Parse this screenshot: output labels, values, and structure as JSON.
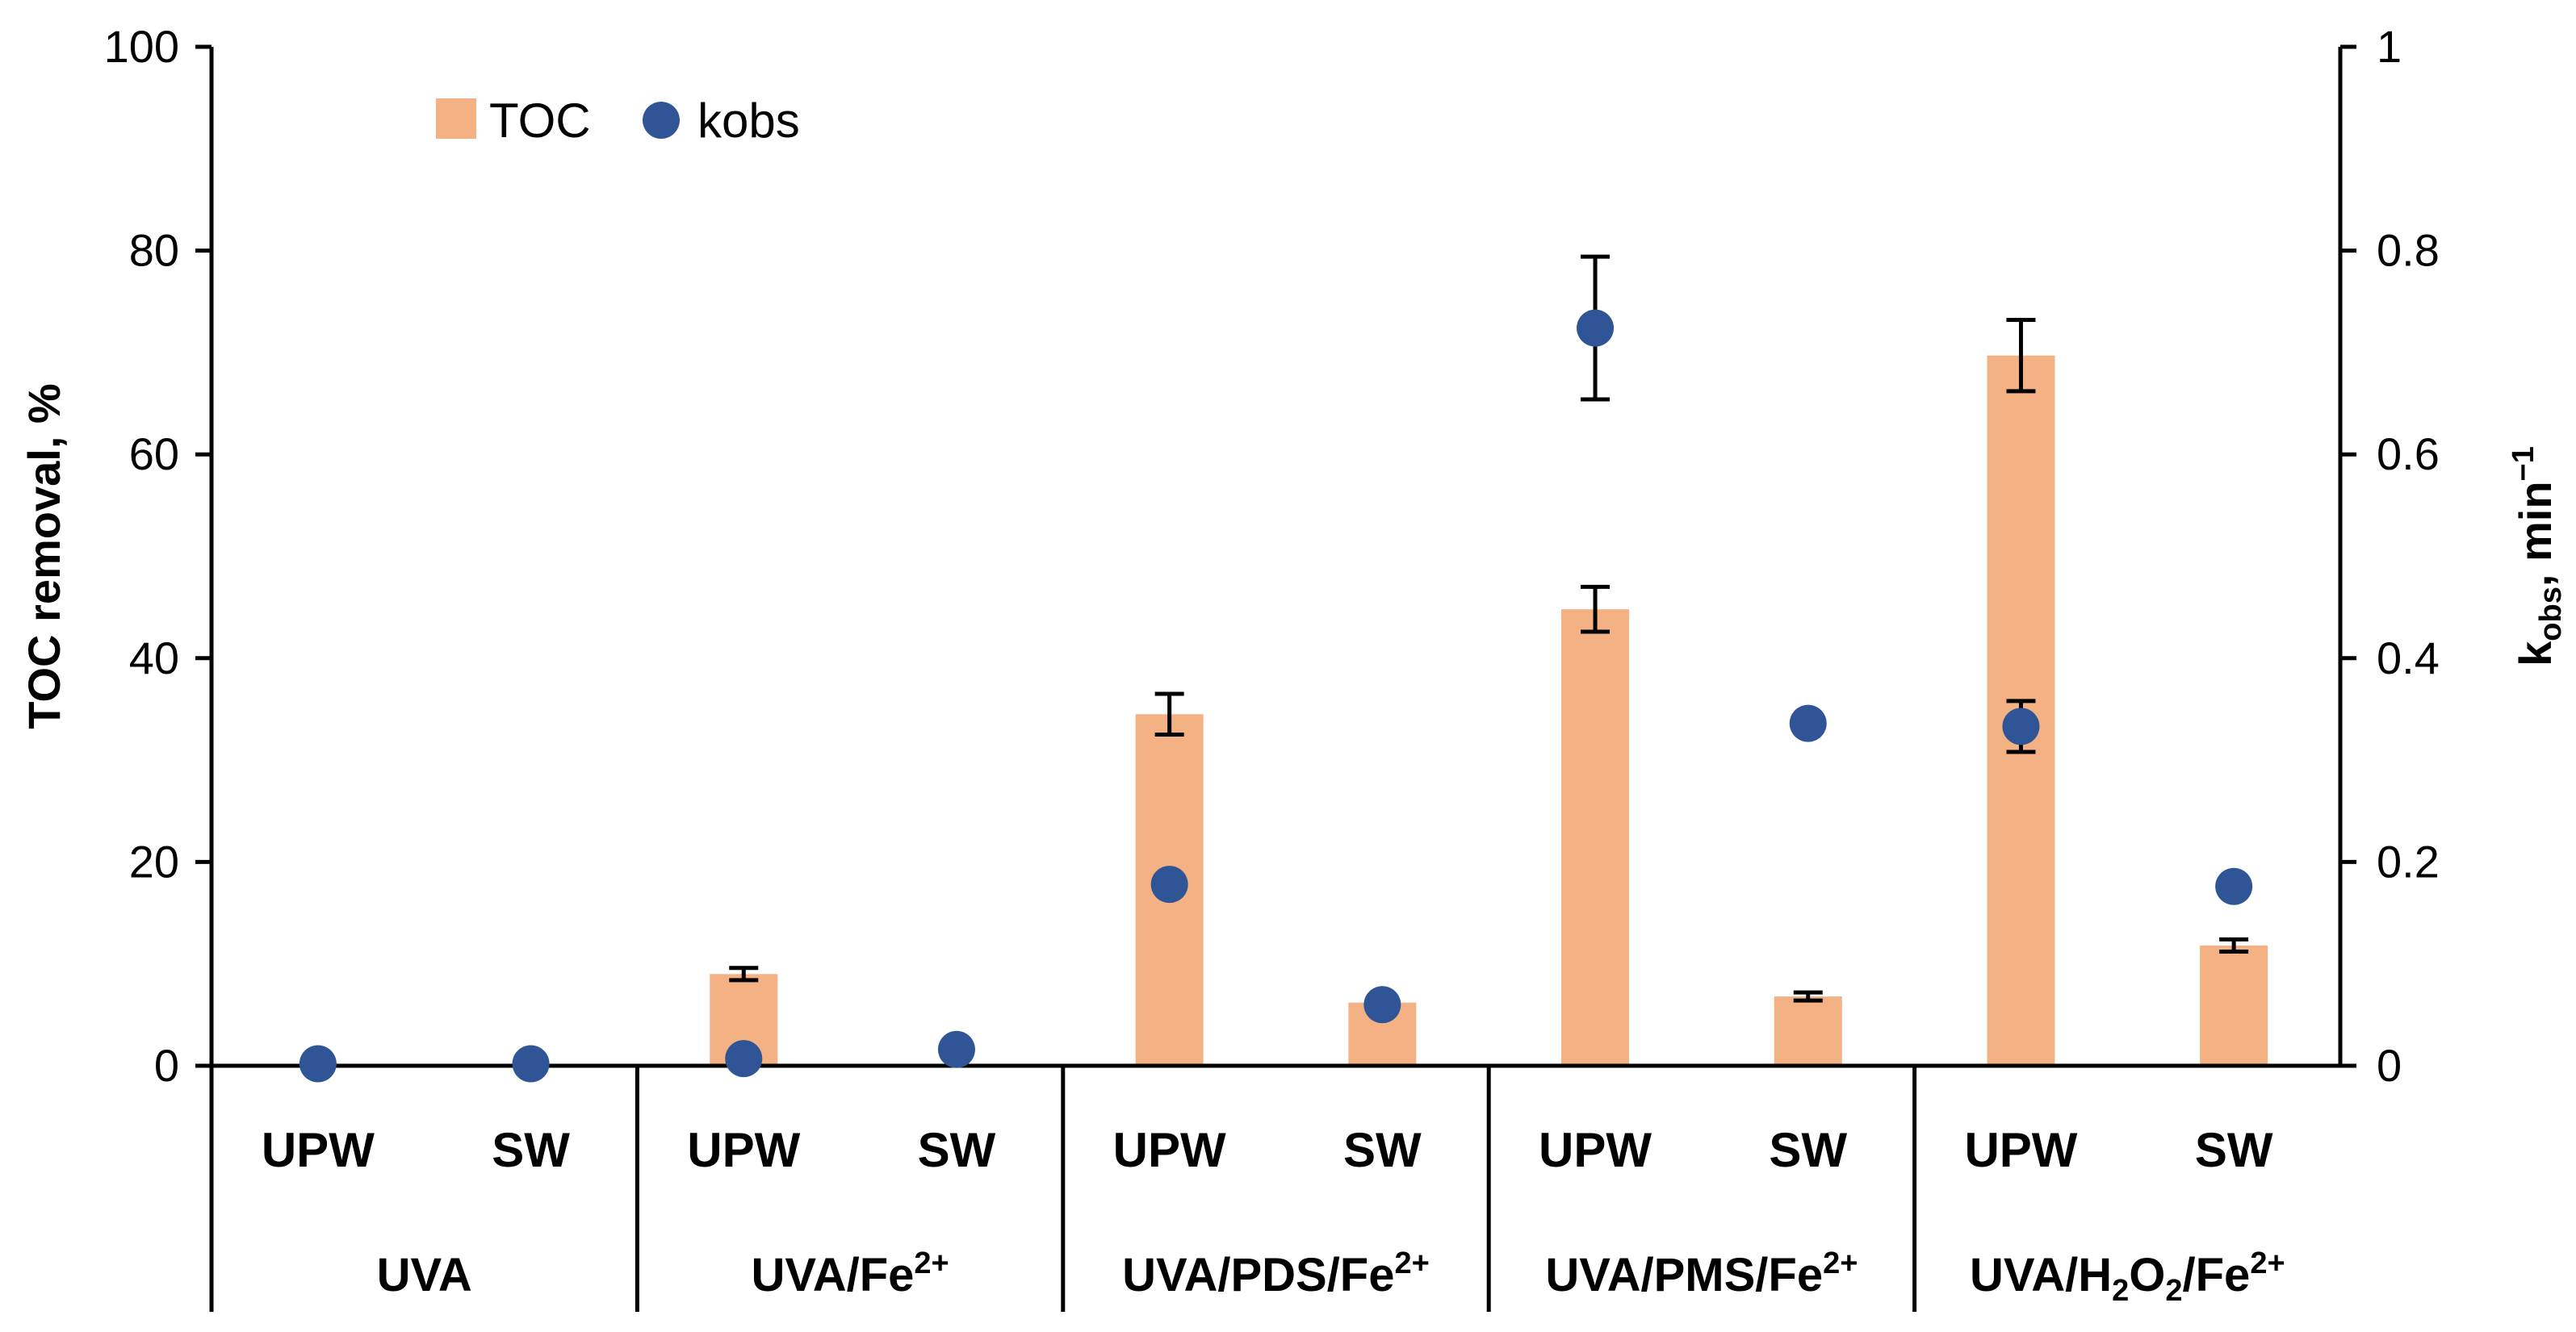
{
  "chart_data": {
    "type": "bar",
    "left_axis": {
      "label": "TOC removal, %",
      "ylim": [
        0,
        100
      ],
      "ticks": [
        "0",
        "20",
        "40",
        "60",
        "80",
        "100"
      ]
    },
    "right_axis": {
      "label_main": "k",
      "label_sub": "obs",
      "label_unit": ", min",
      "label_sup": "−1",
      "ylim": [
        0,
        1
      ],
      "ticks": [
        "0",
        "0.2",
        "0.4",
        "0.6",
        "0.8",
        "1"
      ]
    },
    "groups": [
      {
        "label": "UVA",
        "base": "UVA",
        "sup": "",
        "samples": [
          "UPW",
          "SW"
        ]
      },
      {
        "label": "UVA/Fe2+",
        "base": "UVA/Fe",
        "sup": "2+",
        "samples": [
          "UPW",
          "SW"
        ]
      },
      {
        "label": "UVA/PDS/Fe2+",
        "base": "UVA/PDS/Fe",
        "sup": "2+",
        "samples": [
          "UPW",
          "SW"
        ]
      },
      {
        "label": "UVA/PMS/Fe2+",
        "base": "UVA/PMS/Fe",
        "sup": "2+",
        "samples": [
          "UPW",
          "SW"
        ]
      },
      {
        "label": "UVA/H2O2/Fe2+",
        "parts": [
          {
            "t": "UVA/H",
            "s": ""
          },
          {
            "t": "2",
            "s": "sub"
          },
          {
            "t": "O",
            "s": ""
          },
          {
            "t": "2",
            "s": "sub"
          },
          {
            "t": "/Fe",
            "s": ""
          },
          {
            "t": "2+",
            "s": "sup"
          }
        ],
        "samples": [
          "UPW",
          "SW"
        ]
      }
    ],
    "series": [
      {
        "name": "TOC",
        "type": "bar",
        "axis": "left",
        "color": "#F4B183",
        "values": [
          0,
          0,
          9,
          0,
          34.5,
          6.2,
          44.8,
          6.8,
          69.7,
          11.8
        ],
        "errors": [
          null,
          null,
          0.6,
          null,
          2.0,
          null,
          2.2,
          0.4,
          3.5,
          0.6
        ]
      },
      {
        "name": "kobs",
        "type": "scatter",
        "axis": "right",
        "color": "#2F5597",
        "values": [
          0.002,
          0.002,
          0.007,
          0.016,
          0.178,
          0.06,
          0.724,
          0.336,
          0.333,
          0.176
        ],
        "errors": [
          null,
          null,
          null,
          null,
          null,
          null,
          0.07,
          null,
          0.025,
          null
        ]
      }
    ],
    "legend": {
      "position": "top-left"
    }
  }
}
